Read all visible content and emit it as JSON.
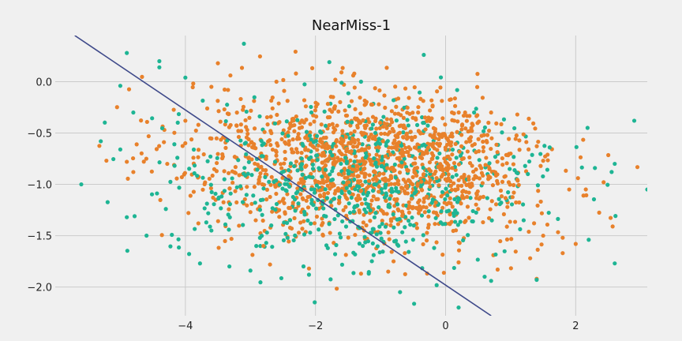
{
  "chart_data": {
    "type": "scatter",
    "title": "NearMiss-1",
    "xlabel": "",
    "ylabel": "",
    "xlim": [
      -6.0,
      3.1
    ],
    "ylim": [
      -2.28,
      0.45
    ],
    "x_ticks": [
      -4,
      -2,
      0,
      2
    ],
    "y_ticks": [
      -2.0,
      -1.5,
      -1.0,
      -0.5,
      0.0
    ],
    "x_tick_labels": [
      "−4",
      "−2",
      "0",
      "2"
    ],
    "y_tick_labels": [
      "−2.0",
      "−1.5",
      "−1.0",
      "−0.5",
      "0.0"
    ],
    "grid": true,
    "legend": "none",
    "colors": {
      "background": "#f0f0f0",
      "grid": "#cbcbcb",
      "majority": "#e8812b",
      "minority": "#1eb594",
      "decision_line": "#3f4a8a"
    },
    "decision_line": {
      "x": [
        -5.7,
        0.7
      ],
      "y": [
        0.45,
        -2.28
      ]
    },
    "series": [
      {
        "color": "#e8812b",
        "cloud": true,
        "points": [
          {
            "x": -3.5,
            "y": 0.18
          },
          {
            "x": -2.3,
            "y": 0.08
          },
          {
            "x": -2.6,
            "y": 0.0
          },
          {
            "x": -3.6,
            "y": -0.05
          },
          {
            "x": -4.0,
            "y": -0.38
          },
          {
            "x": -3.8,
            "y": -0.42
          },
          {
            "x": -1.7,
            "y": -0.24
          },
          {
            "x": -0.2,
            "y": -0.24
          },
          {
            "x": 0.3,
            "y": -0.3
          },
          {
            "x": 0.7,
            "y": -0.3
          },
          {
            "x": -4.6,
            "y": -0.75
          },
          {
            "x": -4.9,
            "y": -0.78
          },
          {
            "x": -4.8,
            "y": -0.88
          },
          {
            "x": -3.8,
            "y": -1.38
          },
          {
            "x": -3.0,
            "y": -1.27
          },
          {
            "x": -2.8,
            "y": -1.6
          },
          {
            "x": -2.1,
            "y": -1.82
          },
          {
            "x": -1.3,
            "y": -1.87
          },
          {
            "x": -0.8,
            "y": -1.75
          },
          {
            "x": 0.2,
            "y": -1.76
          },
          {
            "x": 0.8,
            "y": -1.83
          },
          {
            "x": 1.3,
            "y": -1.72
          },
          {
            "x": 1.4,
            "y": -1.92
          },
          {
            "x": 1.5,
            "y": -1.5
          },
          {
            "x": 1.8,
            "y": -1.52
          },
          {
            "x": 1.8,
            "y": -1.67
          },
          {
            "x": 2.0,
            "y": -1.58
          },
          {
            "x": 1.5,
            "y": -0.77
          },
          {
            "x": 1.9,
            "y": -1.05
          },
          {
            "x": 1.0,
            "y": -0.7
          }
        ]
      },
      {
        "color": "#1eb594",
        "cloud": true,
        "points": [
          {
            "x": -3.1,
            "y": 0.37
          },
          {
            "x": -4.9,
            "y": 0.28
          },
          {
            "x": -4.0,
            "y": 0.04
          },
          {
            "x": -4.4,
            "y": 0.2
          },
          {
            "x": -4.4,
            "y": 0.14
          },
          {
            "x": -5.0,
            "y": -0.04
          },
          {
            "x": -1.3,
            "y": 0.0
          },
          {
            "x": -4.8,
            "y": -0.3
          },
          {
            "x": -5.3,
            "y": -0.58
          },
          {
            "x": -5.0,
            "y": -0.66
          },
          {
            "x": -5.6,
            "y": -1.0
          },
          {
            "x": -4.9,
            "y": -1.32
          },
          {
            "x": -4.3,
            "y": -1.24
          },
          {
            "x": -3.0,
            "y": -1.84
          },
          {
            "x": -0.8,
            "y": -0.18
          },
          {
            "x": -0.7,
            "y": -2.05
          },
          {
            "x": -0.8,
            "y": -2.3
          },
          {
            "x": 0.2,
            "y": -2.2
          },
          {
            "x": 0.7,
            "y": -1.94
          },
          {
            "x": 0.6,
            "y": -1.9
          },
          {
            "x": 1.6,
            "y": -0.64
          },
          {
            "x": 1.4,
            "y": -1.93
          },
          {
            "x": 1.2,
            "y": -1.35
          },
          {
            "x": 2.2,
            "y": -1.54
          },
          {
            "x": 2.6,
            "y": -0.8
          },
          {
            "x": 2.9,
            "y": -0.38
          },
          {
            "x": 2.6,
            "y": -1.77
          },
          {
            "x": 3.1,
            "y": -1.05
          },
          {
            "x": -3.6,
            "y": -1.45
          },
          {
            "x": -2.1,
            "y": -1.88
          }
        ]
      }
    ]
  }
}
